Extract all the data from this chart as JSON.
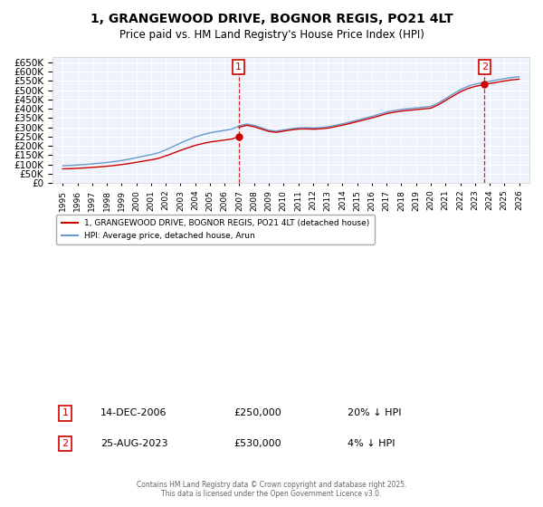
{
  "title_line1": "1, GRANGEWOOD DRIVE, BOGNOR REGIS, PO21 4LT",
  "title_line2": "Price paid vs. HM Land Registry's House Price Index (HPI)",
  "background_color": "#ffffff",
  "plot_bg_color": "#eef2fa",
  "grid_color": "#ffffff",
  "sale1_date": "14-DEC-2006",
  "sale1_price": 250000,
  "sale1_label": "20% ↓ HPI",
  "sale2_date": "25-AUG-2023",
  "sale2_price": 530000,
  "sale2_label": "4% ↓ HPI",
  "legend_entry1": "1, GRANGEWOOD DRIVE, BOGNOR REGIS, PO21 4LT (detached house)",
  "legend_entry2": "HPI: Average price, detached house, Arun",
  "footnote": "Contains HM Land Registry data © Crown copyright and database right 2025.\nThis data is licensed under the Open Government Licence v3.0.",
  "red_color": "#cc0000",
  "blue_color": "#6699cc",
  "ylim_min": 0,
  "ylim_max": 680000,
  "ytick_step": 50000,
  "sale1_x": 2006.95,
  "sale2_x": 2023.65,
  "hpi_years": [
    1995,
    1995.5,
    1996,
    1996.5,
    1997,
    1997.5,
    1998,
    1998.5,
    1999,
    1999.5,
    2000,
    2000.5,
    2001,
    2001.5,
    2002,
    2002.5,
    2003,
    2003.5,
    2004,
    2004.5,
    2005,
    2005.5,
    2006,
    2006.5,
    2007,
    2007.5,
    2008,
    2008.5,
    2009,
    2009.5,
    2010,
    2010.5,
    2011,
    2011.5,
    2012,
    2012.5,
    2013,
    2013.5,
    2014,
    2014.5,
    2015,
    2015.5,
    2016,
    2016.5,
    2017,
    2017.5,
    2018,
    2018.5,
    2019,
    2019.5,
    2020,
    2020.5,
    2021,
    2021.5,
    2022,
    2022.5,
    2023,
    2023.5,
    2024,
    2024.5,
    2025,
    2025.5,
    2026
  ],
  "hpi_values": [
    93000,
    94000,
    97000,
    99000,
    103000,
    106000,
    110000,
    115000,
    121000,
    128000,
    136000,
    144000,
    152000,
    162000,
    178000,
    196000,
    215000,
    232000,
    248000,
    260000,
    270000,
    277000,
    283000,
    290000,
    308000,
    318000,
    310000,
    297000,
    284000,
    279000,
    286000,
    292000,
    297000,
    298000,
    296000,
    298000,
    302000,
    310000,
    318000,
    328000,
    338000,
    348000,
    358000,
    370000,
    382000,
    390000,
    396000,
    400000,
    404000,
    408000,
    412000,
    430000,
    455000,
    478000,
    502000,
    520000,
    532000,
    540000,
    548000,
    555000,
    562000,
    568000,
    572000
  ]
}
